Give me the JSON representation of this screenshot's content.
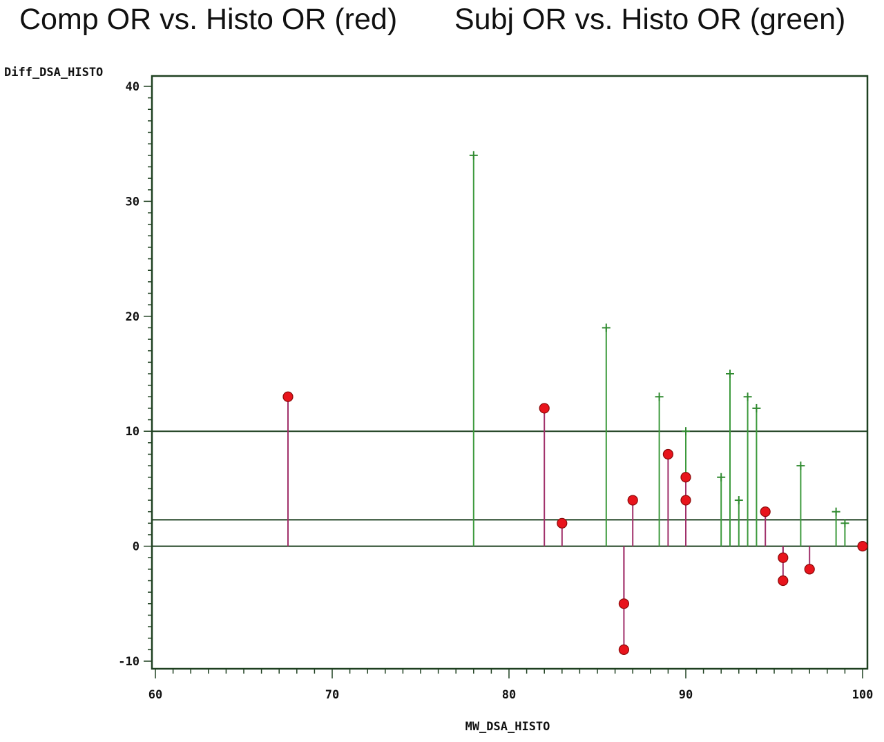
{
  "chart_data": {
    "type": "scatter",
    "title_left": "Comp OR vs. Histo OR (red)",
    "title_right": "Subj OR vs. Histo OR (green)",
    "xlabel": "MW_DSA_HISTO",
    "ylabel": "Diff_DSA_HISTO",
    "xlim": [
      60,
      100
    ],
    "ylim": [
      -10,
      40
    ],
    "x_ticks": [
      "60",
      "70",
      "80",
      "90",
      "100"
    ],
    "y_ticks": [
      "-10",
      "0",
      "10",
      "20",
      "30",
      "40"
    ],
    "reference_lines": [
      0,
      2.3,
      10
    ],
    "plot_style": "needle",
    "series": [
      {
        "color": "#e8141c",
        "marker": "filled-circle",
        "needle_color": "#a0306a",
        "points": [
          {
            "x": 67.5,
            "y": 13
          },
          {
            "x": 82,
            "y": 12
          },
          {
            "x": 83,
            "y": 2
          },
          {
            "x": 86.5,
            "y": -5
          },
          {
            "x": 86.5,
            "y": -9
          },
          {
            "x": 87,
            "y": 4
          },
          {
            "x": 89,
            "y": 8
          },
          {
            "x": 90,
            "y": 6
          },
          {
            "x": 90,
            "y": 4
          },
          {
            "x": 94.5,
            "y": 3
          },
          {
            "x": 95.5,
            "y": -1
          },
          {
            "x": 95.5,
            "y": -3
          },
          {
            "x": 97,
            "y": -2
          },
          {
            "x": 100,
            "y": 0
          }
        ]
      },
      {
        "color": "#2f8a2f",
        "marker": "plus",
        "needle_color": "#3c9a3c",
        "points": [
          {
            "x": 78,
            "y": 34
          },
          {
            "x": 85.5,
            "y": 19
          },
          {
            "x": 88.5,
            "y": 13
          },
          {
            "x": 90,
            "y": 10
          },
          {
            "x": 92,
            "y": 6
          },
          {
            "x": 92.5,
            "y": 15
          },
          {
            "x": 93,
            "y": 4
          },
          {
            "x": 93.5,
            "y": 13
          },
          {
            "x": 94,
            "y": 12
          },
          {
            "x": 96.5,
            "y": 7
          },
          {
            "x": 98.5,
            "y": 3
          },
          {
            "x": 99,
            "y": 2
          }
        ]
      }
    ]
  }
}
